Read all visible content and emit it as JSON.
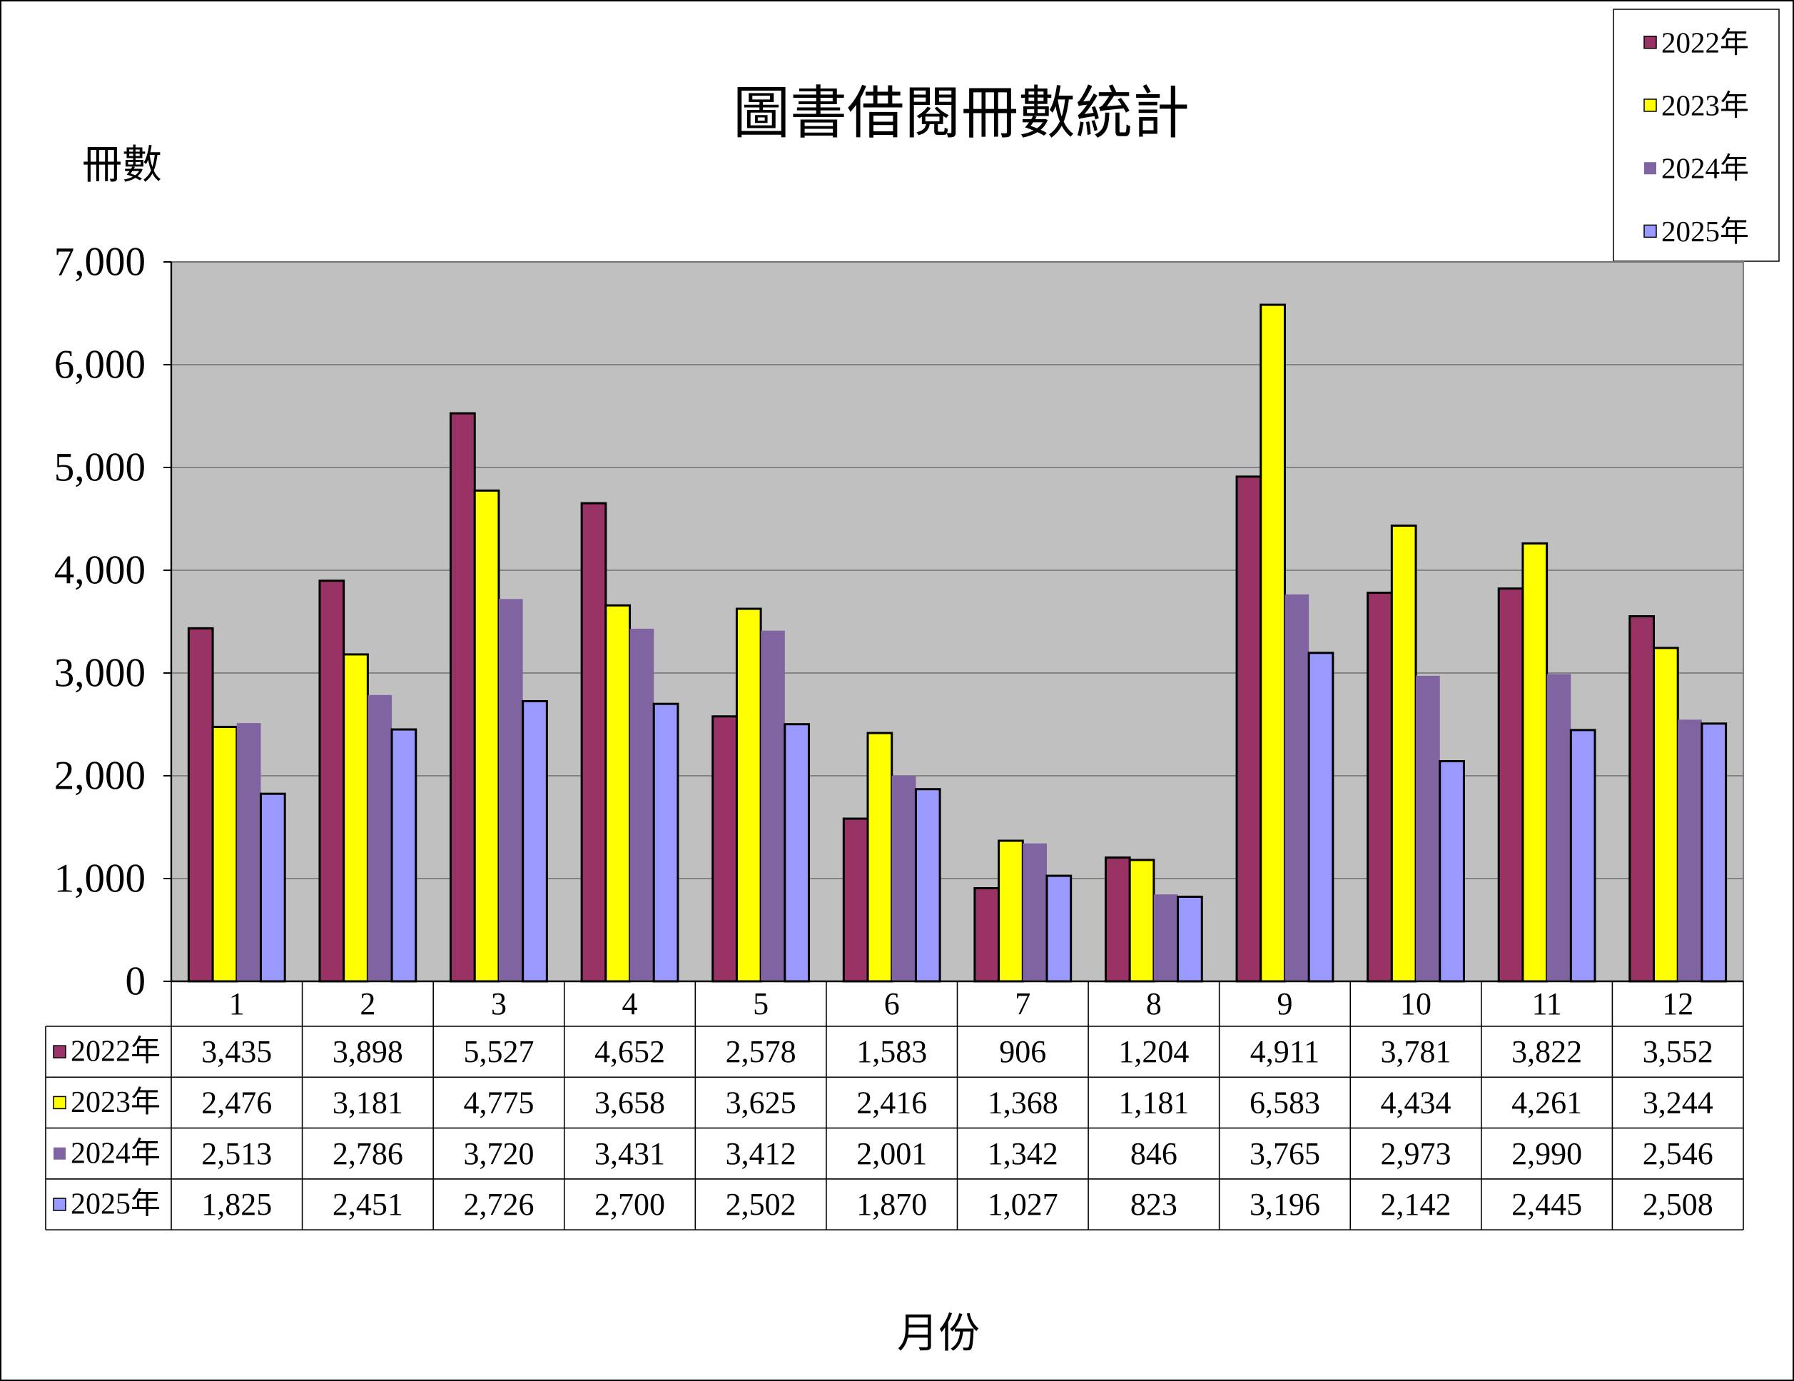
{
  "chart_data": {
    "type": "bar",
    "title": "圖書借閱冊數統計",
    "ylabel": "冊數",
    "xlabel": "月份",
    "categories": [
      "1",
      "2",
      "3",
      "4",
      "5",
      "6",
      "7",
      "8",
      "9",
      "10",
      "11",
      "12"
    ],
    "series": [
      {
        "name": "2022年",
        "color": "#993366",
        "values": [
          3435,
          3898,
          5527,
          4652,
          2578,
          1583,
          906,
          1204,
          4911,
          3781,
          3822,
          3552
        ]
      },
      {
        "name": "2023年",
        "color": "#FFFF00",
        "values": [
          2476,
          3181,
          4775,
          3658,
          3625,
          2416,
          1368,
          1181,
          6583,
          4434,
          4261,
          3244
        ]
      },
      {
        "name": "2024年",
        "color": "#8064A2",
        "values": [
          2513,
          2786,
          3720,
          3431,
          3412,
          2001,
          1342,
          846,
          3765,
          2973,
          2990,
          2546
        ]
      },
      {
        "name": "2025年",
        "color": "#9999FF",
        "values": [
          1825,
          2451,
          2726,
          2700,
          2502,
          1870,
          1027,
          823,
          3196,
          2142,
          2445,
          2508
        ]
      }
    ],
    "ylim": [
      0,
      7000
    ],
    "yticks": [
      0,
      1000,
      2000,
      3000,
      4000,
      5000,
      6000,
      7000
    ],
    "grid": true,
    "legend": "top-right",
    "show_data_table": true,
    "plot_background": "#C0C0C0"
  }
}
